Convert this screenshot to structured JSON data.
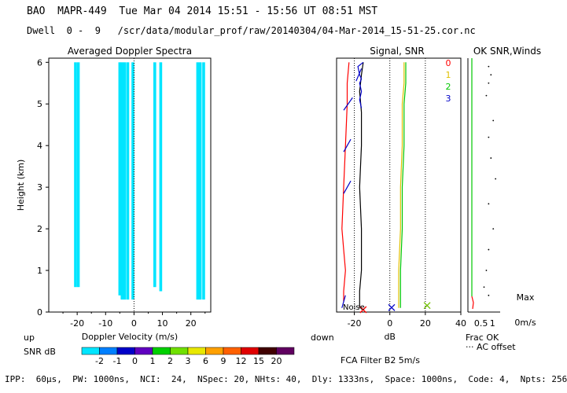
{
  "header": {
    "line1": "BAO  MAPR-449  Tue Mar 04 2014 15:51 - 15:56 UT 08:51 MST",
    "line2": "Dwell  0 -  9   /scr/data/modular_prof/raw/20140304/04-Mar-2014_15-51-25.cor.nc"
  },
  "chart_data": [
    {
      "type": "heatmap",
      "title": "Averaged Doppler Spectra",
      "xlabel": "Doppler Velocity (m/s)",
      "ylabel": "Height (km)",
      "xlim": [
        -30,
        27
      ],
      "ylim": [
        0,
        6.1
      ],
      "x_ticks": [
        -20,
        -10,
        0,
        10,
        20
      ],
      "y_ticks": [
        0,
        1,
        2,
        3,
        4,
        5,
        6
      ],
      "x_tick_labels": [
        "-20",
        "-10",
        "0",
        "10",
        "20"
      ],
      "y_tick_labels": [
        "0",
        "1",
        "2",
        "3",
        "4",
        "5",
        "6"
      ],
      "left_note": "up",
      "right_note": "down",
      "spectral_bands": [
        {
          "velocity": -20.6,
          "h_from": 0.6,
          "h_to": 6.0
        },
        {
          "velocity": -19.6,
          "h_from": 0.6,
          "h_to": 6.0
        },
        {
          "velocity": -5.0,
          "h_from": 0.4,
          "h_to": 6.0
        },
        {
          "velocity": -4.2,
          "h_from": 0.3,
          "h_to": 6.0
        },
        {
          "velocity": -3.3,
          "h_from": 0.3,
          "h_to": 6.0
        },
        {
          "velocity": -2.2,
          "h_from": 0.3,
          "h_to": 6.0
        },
        {
          "velocity": -0.4,
          "h_from": 0.3,
          "h_to": 6.0
        },
        {
          "velocity": 7.3,
          "h_from": 0.6,
          "h_to": 6.0
        },
        {
          "velocity": 9.4,
          "h_from": 0.5,
          "h_to": 6.0
        },
        {
          "velocity": 22.4,
          "h_from": 0.3,
          "h_to": 6.0
        },
        {
          "velocity": 23.3,
          "h_from": 0.3,
          "h_to": 6.0
        },
        {
          "velocity": 24.5,
          "h_from": 0.3,
          "h_to": 6.0
        }
      ],
      "colorbar": {
        "label": "SNR dB",
        "values": [
          "-2",
          "-1",
          "0",
          "1",
          "2",
          "3",
          "6",
          "9",
          "12",
          "15",
          "20"
        ],
        "colors": [
          "#00e5ff",
          "#0080ff",
          "#0000c8",
          "#6000c0",
          "#00d000",
          "#70e000",
          "#e8e800",
          "#ffa000",
          "#ff6000",
          "#e00000",
          "#400000",
          "#600060"
        ]
      }
    },
    {
      "type": "line",
      "title": "Signal, SNR",
      "xlabel": "dB",
      "xlim": [
        -30,
        40
      ],
      "ylim": [
        0,
        6.1
      ],
      "x_ticks": [
        -20,
        0,
        20,
        40
      ],
      "x_tick_labels": [
        "-20",
        "0",
        "20",
        "40"
      ],
      "noise_label": "Noise",
      "legend": [
        "0",
        "1",
        "2",
        "3"
      ],
      "legend_colors": [
        "#ff0000",
        "#e0c000",
        "#00c800",
        "#0000c8"
      ],
      "series": [
        {
          "name": "0",
          "color": "#ff0000",
          "x": [
            -26,
            -26,
            -25,
            -26,
            -27,
            -26,
            -25,
            -24,
            -24,
            -23
          ],
          "y": [
            0.25,
            0.5,
            1.0,
            1.5,
            2.0,
            3.0,
            4.0,
            5.0,
            5.5,
            6.0
          ]
        },
        {
          "name": "black",
          "color": "#000000",
          "x": [
            -17,
            -17,
            -16,
            -16,
            -17,
            -16,
            -16,
            -17,
            -16,
            -15
          ],
          "y": [
            0.1,
            0.5,
            1.0,
            2.0,
            3.0,
            4.0,
            4.8,
            5.3,
            5.7,
            6.0
          ]
        },
        {
          "name": "1",
          "color": "#e0c000",
          "x": [
            5,
            5,
            6,
            6,
            7,
            7,
            8,
            8
          ],
          "y": [
            0.1,
            1.0,
            2.0,
            3.0,
            4.0,
            5.0,
            5.5,
            6.0
          ]
        },
        {
          "name": "2",
          "color": "#00c800",
          "x": [
            6,
            6,
            7,
            7,
            8,
            8,
            9,
            9
          ],
          "y": [
            0.1,
            1.0,
            2.0,
            3.0,
            4.0,
            5.0,
            5.5,
            6.0
          ]
        },
        {
          "name": "3",
          "color": "#0000c8",
          "x": [
            -16,
            -17,
            -16,
            -17,
            -16,
            -17,
            -18,
            -15
          ],
          "y": [
            4.9,
            5.1,
            5.3,
            5.5,
            5.6,
            5.7,
            5.9,
            6.0
          ]
        }
      ],
      "wind_ticks": [
        {
          "h": 0.25,
          "dx1": -27,
          "dx2": -25
        },
        {
          "h": 3.0,
          "dx1": -26,
          "dx2": -22
        },
        {
          "h": 4.0,
          "dx1": -26,
          "dx2": -22
        },
        {
          "h": 5.0,
          "dx1": -26,
          "dx2": -21
        },
        {
          "h": 5.7,
          "dx1": -19,
          "dx2": -16
        }
      ],
      "markers": [
        {
          "x": -15,
          "y": 0.0,
          "color": "#ff0000"
        },
        {
          "x": 1,
          "y": 0.05,
          "color": "#0000c8"
        },
        {
          "x": 21,
          "y": 0.1,
          "color": "#70c000"
        }
      ]
    },
    {
      "type": "scatter",
      "title": "OK SNR,Winds",
      "xlim": [
        0,
        1.4
      ],
      "ylim": [
        0,
        6.1
      ],
      "x_tick_labels": [
        "0.5",
        "1"
      ],
      "frac_label": "Frac OK",
      "ac_label": "··· AC offset",
      "max_label": "Max",
      "max_value": "0m/s",
      "points": [
        {
          "x": 0.9,
          "y": 5.9
        },
        {
          "x": 1.0,
          "y": 5.7
        },
        {
          "x": 0.9,
          "y": 5.5
        },
        {
          "x": 0.8,
          "y": 5.2
        },
        {
          "x": 1.1,
          "y": 4.6
        },
        {
          "x": 0.9,
          "y": 4.2
        },
        {
          "x": 1.0,
          "y": 3.7
        },
        {
          "x": 1.2,
          "y": 3.2
        },
        {
          "x": 0.9,
          "y": 2.6
        },
        {
          "x": 1.1,
          "y": 2.0
        },
        {
          "x": 0.9,
          "y": 1.5
        },
        {
          "x": 0.8,
          "y": 1.0
        },
        {
          "x": 0.7,
          "y": 0.6
        },
        {
          "x": 0.9,
          "y": 0.4
        }
      ]
    }
  ],
  "fca": {
    "label": "FCA Filter B2  5m/s"
  },
  "footer": {
    "params": "IPP:  60µs,  PW: 1000ns,  NCI:  24,  NSpec: 20, NHts: 40,  Dly: 1333ns,  Space: 1000ns,  Code: 4,  Npts: 256"
  }
}
